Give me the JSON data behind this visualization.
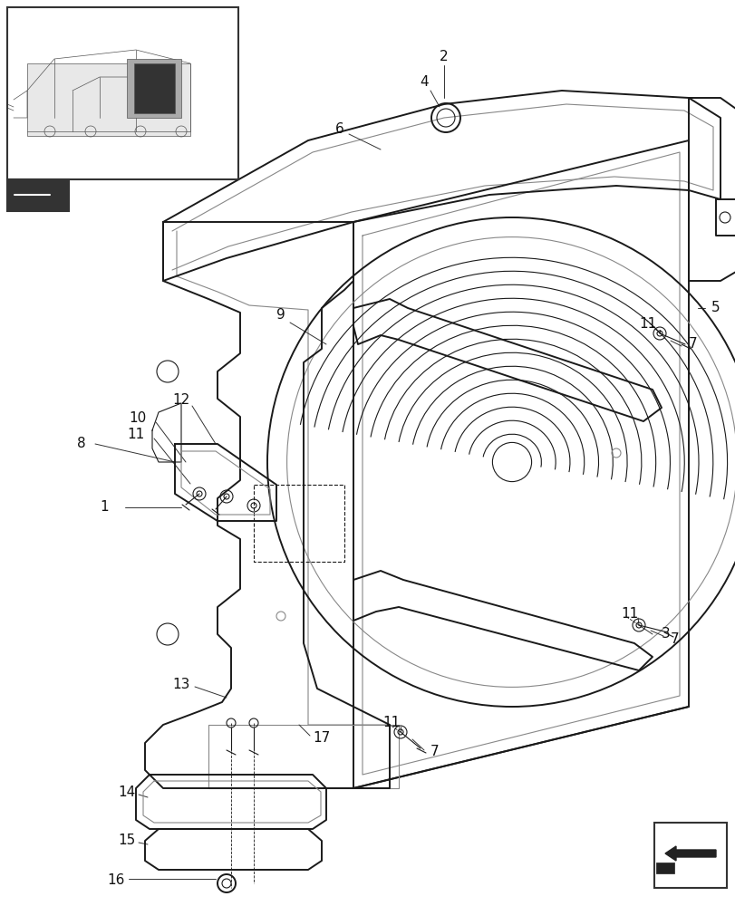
{
  "bg_color": "#ffffff",
  "lc": "#1a1a1a",
  "lc_light": "#888888",
  "fig_width": 8.12,
  "fig_height": 10.0,
  "dpi": 100
}
